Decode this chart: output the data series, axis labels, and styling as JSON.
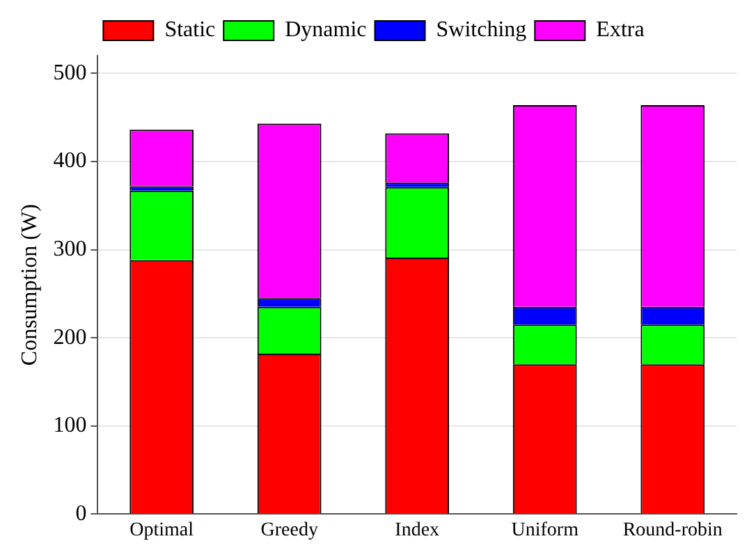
{
  "chart_data": {
    "type": "bar",
    "stacked": true,
    "ylabel": "Consumption (W)",
    "categories": [
      "Optimal",
      "Greedy",
      "Index",
      "Uniform",
      "Round-robin"
    ],
    "series": [
      {
        "name": "Static",
        "color": "#ff0000",
        "values": [
          288,
          182,
          291,
          170,
          170
        ]
      },
      {
        "name": "Dynamic",
        "color": "#00ff00",
        "values": [
          79,
          53,
          80,
          45,
          45
        ]
      },
      {
        "name": "Switching",
        "color": "#0000ff",
        "values": [
          5,
          10,
          5,
          20,
          20
        ]
      },
      {
        "name": "Extra",
        "color": "#ff00ff",
        "values": [
          64,
          198,
          56,
          229,
          229
        ]
      }
    ],
    "ylim": [
      0,
      520
    ],
    "yticks": [
      0,
      100,
      200,
      300,
      400,
      500
    ],
    "grid": "y",
    "legend": "top"
  }
}
